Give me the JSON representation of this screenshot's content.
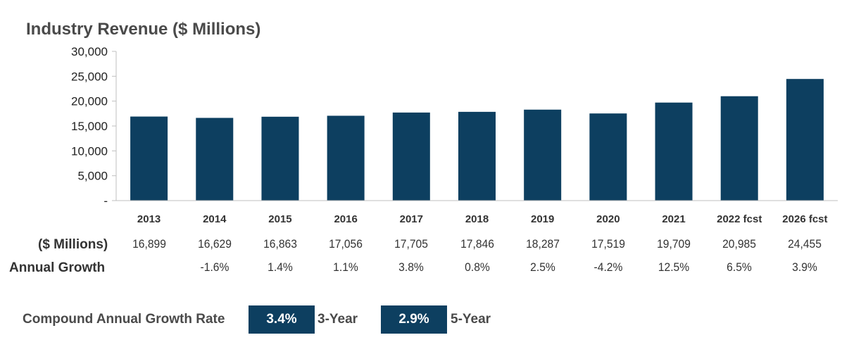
{
  "chart_data": {
    "type": "bar",
    "title": "Industry Revenue ($ Millions)",
    "categories": [
      "2013",
      "2014",
      "2015",
      "2016",
      "2017",
      "2018",
      "2019",
      "2020",
      "2021",
      "2022 fcst",
      "2026 fcst"
    ],
    "values": [
      16899,
      16629,
      16863,
      17056,
      17705,
      17846,
      18287,
      17519,
      19709,
      20985,
      24455
    ],
    "ylim": [
      0,
      30000
    ],
    "yticks": [
      0,
      5000,
      10000,
      15000,
      20000,
      25000,
      30000
    ],
    "ytick_labels": [
      "-",
      "5,000",
      "10,000",
      "15,000",
      "20,000",
      "25,000",
      "30,000"
    ],
    "bar_color": "#0d3f60",
    "grid": false
  },
  "table": {
    "row1_label": "($ Millions)",
    "row1_values": [
      "16,899",
      "16,629",
      "16,863",
      "17,056",
      "17,705",
      "17,846",
      "18,287",
      "17,519",
      "19,709",
      "20,985",
      "24,455"
    ],
    "row2_label": "Annual Growth",
    "row2_values": [
      "",
      "-1.6%",
      "1.4%",
      "1.1%",
      "3.8%",
      "0.8%",
      "2.5%",
      "-4.2%",
      "12.5%",
      "6.5%",
      "3.9%"
    ]
  },
  "cagr": {
    "label": "Compound Annual Growth Rate",
    "three_year_value": "3.4%",
    "three_year_label": "3-Year",
    "five_year_value": "2.9%",
    "five_year_label": "5-Year"
  }
}
